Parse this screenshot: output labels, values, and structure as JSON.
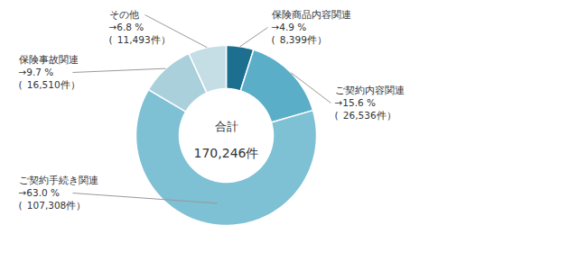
{
  "chart_data": {
    "type": "donut",
    "categories": [
      "保険商品内容関連",
      "ご契約内容関連",
      "ご契約手続き関連",
      "保険事故関連",
      "その他"
    ],
    "values": [
      4.9,
      15.6,
      63.0,
      9.7,
      6.8
    ],
    "value_labels": [
      "→4.9 %",
      "→15.6 %",
      "→63.0 %",
      "→9.7 %",
      "→6.8 %"
    ],
    "counts": [
      8399,
      26536,
      107308,
      16510,
      11493
    ],
    "count_labels": [
      "( 8,399件）",
      "( 26,536件）",
      "( 107,308件）",
      "( 16,510件）",
      "( 11,493件）"
    ],
    "colors": [
      "#1c6f8f",
      "#5aaec8",
      "#7ec0d4",
      "#a9d0db",
      "#c5dde5"
    ],
    "annotations": [
      "合計",
      "170,246件"
    ],
    "data_labels": true
  }
}
